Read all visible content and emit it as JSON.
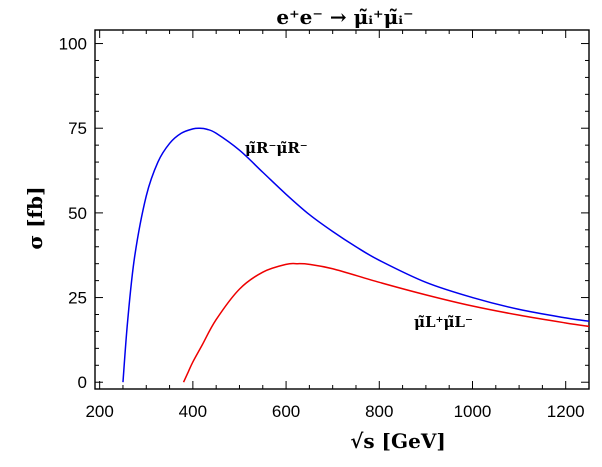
{
  "chart_data": {
    "type": "line",
    "title": "e⁺e⁻ → μ̃ᵢ⁺μ̃ᵢ⁻",
    "xlabel": "√s [GeV]",
    "ylabel": "σ [fb]",
    "xlim": [
      190,
      1250
    ],
    "ylim": [
      -2,
      104
    ],
    "xticks": [
      200,
      400,
      600,
      800,
      1000,
      1200
    ],
    "yticks": [
      0,
      25,
      50,
      75,
      100
    ],
    "grid": false,
    "legend": "none",
    "series": [
      {
        "name": "μ̃R⁻μ̃R⁻",
        "color": "#0000ee",
        "x": [
          250,
          260,
          275,
          300,
          325,
          350,
          375,
          400,
          415,
          430,
          450,
          500,
          550,
          600,
          650,
          700,
          750,
          800,
          900,
          1000,
          1100,
          1200,
          1250
        ],
        "y": [
          0,
          18,
          37,
          55,
          65,
          70.5,
          73.5,
          74.8,
          75,
          74.7,
          73.5,
          68.5,
          62,
          55.5,
          49.5,
          44.5,
          40,
          36,
          29.5,
          25,
          21.5,
          19,
          18
        ]
      },
      {
        "name": "μ̃L⁺μ̃L⁻",
        "color": "#ee0000",
        "x": [
          380,
          390,
          400,
          420,
          450,
          500,
          550,
          600,
          625,
          650,
          700,
          800,
          900,
          1000,
          1100,
          1200,
          1250
        ],
        "y": [
          0,
          3,
          6,
          11,
          18.5,
          27.5,
          32.5,
          34.8,
          35,
          34.8,
          33.5,
          29.5,
          25.8,
          22.5,
          19.8,
          17.5,
          16.5
        ]
      }
    ]
  }
}
